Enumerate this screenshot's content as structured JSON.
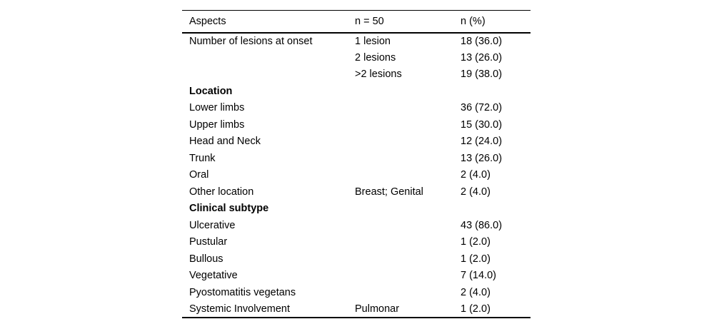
{
  "colors": {
    "background": "#ffffff",
    "text": "#000000",
    "rule": "#000000"
  },
  "table": {
    "headers": [
      "Aspects",
      "n = 50",
      "n (%)"
    ],
    "rows": [
      {
        "aspect": "Number of lesions at onset",
        "detail": "1 lesion",
        "value": "18 (36.0)",
        "bold": false
      },
      {
        "aspect": "",
        "detail": "2 lesions",
        "value": "13 (26.0)",
        "bold": false
      },
      {
        "aspect": "",
        "detail": ">2 lesions",
        "value": "19 (38.0)",
        "bold": false
      },
      {
        "aspect": "Location",
        "detail": "",
        "value": "",
        "bold": true
      },
      {
        "aspect": "Lower limbs",
        "detail": "",
        "value": "36 (72.0)",
        "bold": false
      },
      {
        "aspect": "Upper limbs",
        "detail": "",
        "value": "15 (30.0)",
        "bold": false
      },
      {
        "aspect": "Head and Neck",
        "detail": "",
        "value": "12 (24.0)",
        "bold": false
      },
      {
        "aspect": "Trunk",
        "detail": "",
        "value": "13 (26.0)",
        "bold": false
      },
      {
        "aspect": "Oral",
        "detail": "",
        "value": "2 (4.0)",
        "bold": false
      },
      {
        "aspect": "Other location",
        "detail": "Breast; Genital",
        "value": "2 (4.0)",
        "bold": false
      },
      {
        "aspect": "Clinical subtype",
        "detail": "",
        "value": "",
        "bold": true
      },
      {
        "aspect": "Ulcerative",
        "detail": "",
        "value": "43 (86.0)",
        "bold": false
      },
      {
        "aspect": "Pustular",
        "detail": "",
        "value": "1 (2.0)",
        "bold": false
      },
      {
        "aspect": "Bullous",
        "detail": "",
        "value": "1 (2.0)",
        "bold": false
      },
      {
        "aspect": "Vegetative",
        "detail": "",
        "value": "7 (14.0)",
        "bold": false
      },
      {
        "aspect": "Pyostomatitis vegetans",
        "detail": "",
        "value": "2 (4.0)",
        "bold": false
      },
      {
        "aspect": "Systemic Involvement",
        "detail": "Pulmonar",
        "value": "1 (2.0)",
        "bold": false
      }
    ]
  }
}
